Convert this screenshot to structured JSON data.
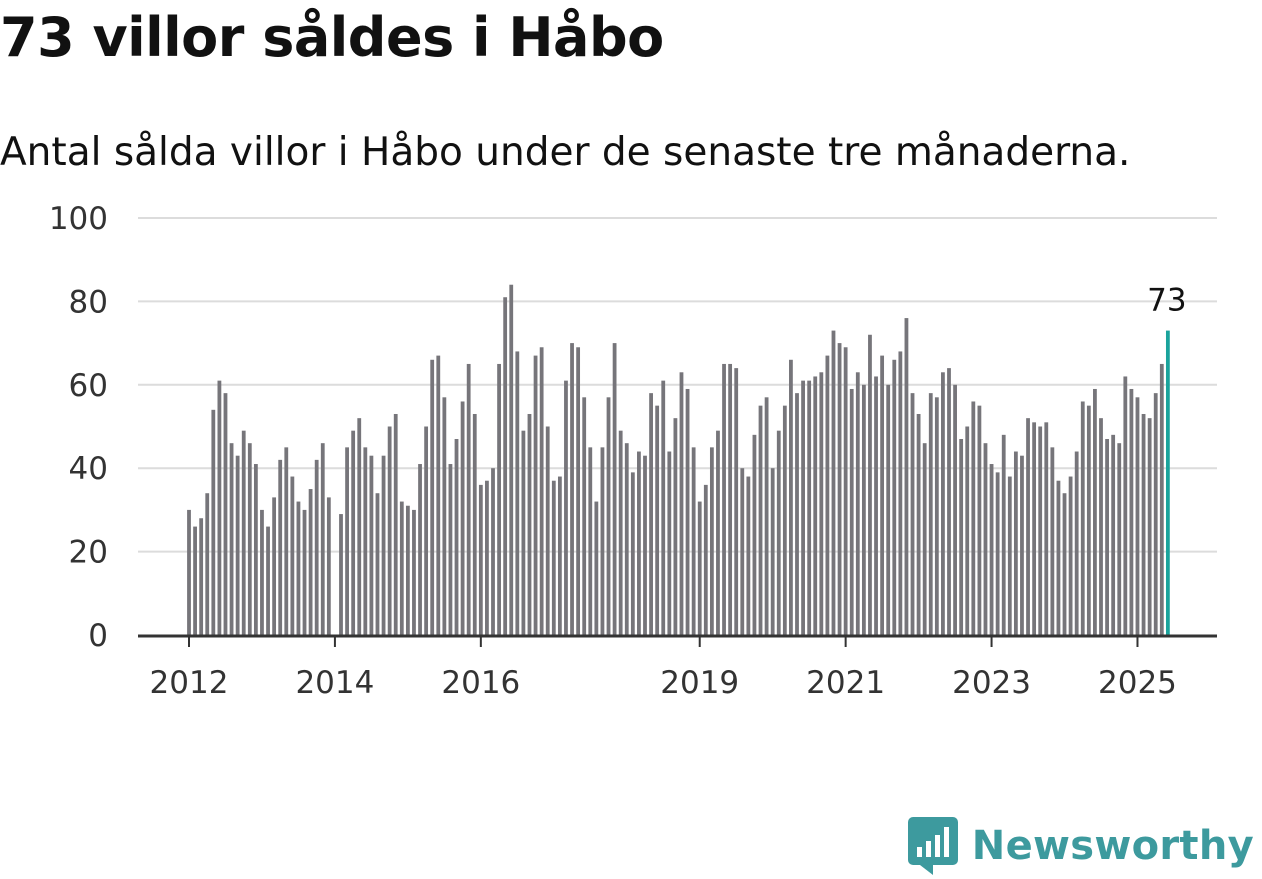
{
  "title": "73 villor såldes i Håbo",
  "subtitle": "Antal sålda villor i Håbo under de senaste tre månaderna.",
  "brand": {
    "name": "Newsworthy",
    "color": "#3d9a9e",
    "icon": "bar-chart-bubble-icon"
  },
  "chart_data": {
    "type": "bar",
    "x_start": "2012-01",
    "x_end": "2025-06",
    "frequency": "monthly",
    "values": [
      30,
      26,
      28,
      34,
      54,
      61,
      58,
      46,
      43,
      49,
      46,
      41,
      30,
      26,
      33,
      42,
      45,
      38,
      32,
      30,
      35,
      42,
      46,
      33,
      null,
      29,
      45,
      49,
      52,
      45,
      43,
      34,
      43,
      50,
      53,
      32,
      31,
      30,
      41,
      50,
      66,
      67,
      57,
      41,
      47,
      56,
      65,
      53,
      36,
      37,
      40,
      65,
      81,
      84,
      68,
      49,
      53,
      67,
      69,
      50,
      37,
      38,
      61,
      70,
      69,
      57,
      45,
      32,
      45,
      57,
      70,
      49,
      46,
      39,
      44,
      43,
      58,
      55,
      61,
      44,
      52,
      63,
      59,
      45,
      32,
      36,
      45,
      49,
      65,
      65,
      64,
      40,
      38,
      48,
      55,
      57,
      40,
      49,
      55,
      66,
      58,
      61,
      61,
      62,
      63,
      67,
      73,
      70,
      69,
      59,
      63,
      60,
      72,
      62,
      67,
      60,
      66,
      68,
      76,
      58,
      53,
      46,
      58,
      57,
      63,
      64,
      60,
      47,
      50,
      56,
      55,
      46,
      41,
      39,
      48,
      38,
      44,
      43,
      52,
      51,
      50,
      51,
      45,
      37,
      34,
      38,
      44,
      56,
      55,
      59,
      52,
      47,
      48,
      46,
      62,
      59,
      57,
      53,
      52,
      58,
      65,
      73
    ],
    "highlight": {
      "date": "2025-06",
      "value": 73,
      "label": "73",
      "color": "#1aa39c"
    },
    "bar_color": "#76757a",
    "xticks": [
      "2012",
      "2014",
      "2016",
      "2019",
      "2021",
      "2023",
      "2025"
    ],
    "yticks": [
      "0",
      "20",
      "40",
      "60",
      "80",
      "100"
    ],
    "ylim": [
      0,
      100
    ],
    "grid": true,
    "xlabel": "",
    "ylabel": ""
  }
}
